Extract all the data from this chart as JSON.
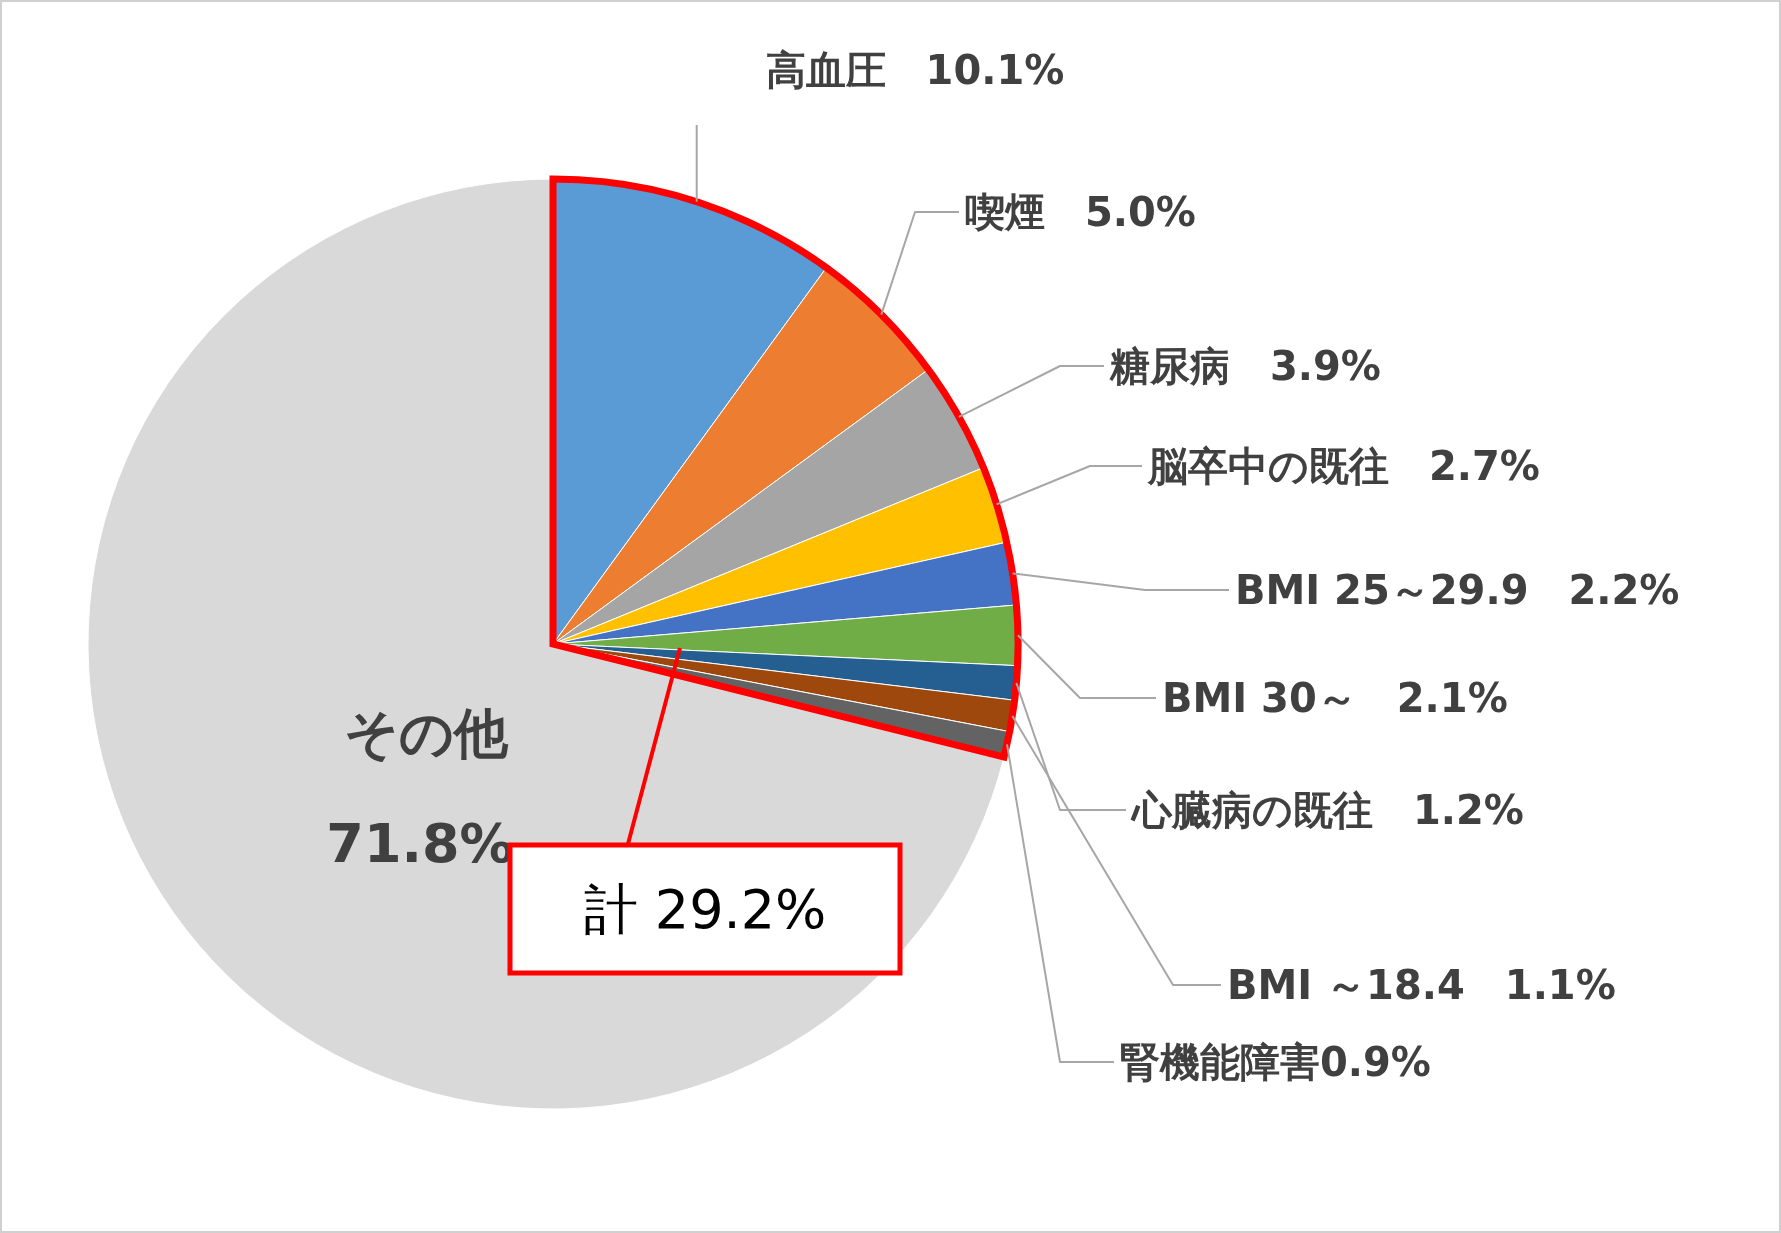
{
  "chart_data": {
    "type": "pie",
    "categories": [
      "高血圧",
      "喫煙",
      "糖尿病",
      "脳卒中の既往",
      "BMI 25～29.9",
      "BMI  30～",
      "心臓病の既往",
      "BMI  ～18.4",
      "腎機能障害",
      "その他"
    ],
    "values": [
      10.1,
      5.0,
      3.9,
      2.7,
      2.2,
      2.1,
      1.2,
      1.1,
      0.9,
      71.8
    ],
    "value_labels": [
      "10.1%",
      "5.0%",
      "3.9%",
      "2.7%",
      "2.2%",
      "2.1%",
      "1.2%",
      "1.1%",
      "0.9%",
      "71.8%"
    ],
    "colors": [
      "#5b9bd5",
      "#ed7d31",
      "#a5a5a5",
      "#ffc000",
      "#4472c4",
      "#70ad47",
      "#255e91",
      "#9e480e",
      "#636363",
      "#d9d9d9"
    ],
    "annotations": [
      "計 29.2%"
    ]
  }
}
